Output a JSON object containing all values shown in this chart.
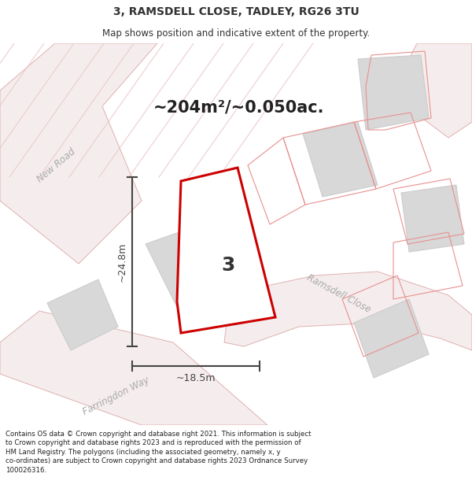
{
  "title_line1": "3, RAMSDELL CLOSE, TADLEY, RG26 3TU",
  "title_line2": "Map shows position and indicative extent of the property.",
  "area_text": "~204m²/~0.050ac.",
  "dim_vertical": "~24.8m",
  "dim_horizontal": "~18.5m",
  "plot_number": "3",
  "footer_text": "Contains OS data © Crown copyright and database right 2021. This information is subject\nto Crown copyright and database rights 2023 and is reproduced with the permission of\nHM Land Registry. The polygons (including the associated geometry, namely x, y\nco-ordinates) are subject to Crown copyright and database rights 2023 Ordnance Survey\n100026316.",
  "bg_color": "#ffffff",
  "map_bg_color": "#ffffff",
  "road_fill": "#f5eded",
  "road_edge": "#e0b0b0",
  "building_color": "#d8d8d8",
  "building_edge": "#cccccc",
  "prop_edge": "#e89090",
  "plot_fill": "#ffffff",
  "plot_edge": "#cc0000",
  "dim_color": "#444444",
  "road_text_color": "#aaaaaa",
  "title_color": "#333333",
  "footer_color": "#222222",
  "area_text_color": "#222222",
  "title_fontsize": 10,
  "subtitle_fontsize": 8.5,
  "area_fontsize": 15,
  "dim_fontsize": 9,
  "road_label_fontsize": 8.5,
  "plot_label_fontsize": 18,
  "footer_fontsize": 6.2
}
